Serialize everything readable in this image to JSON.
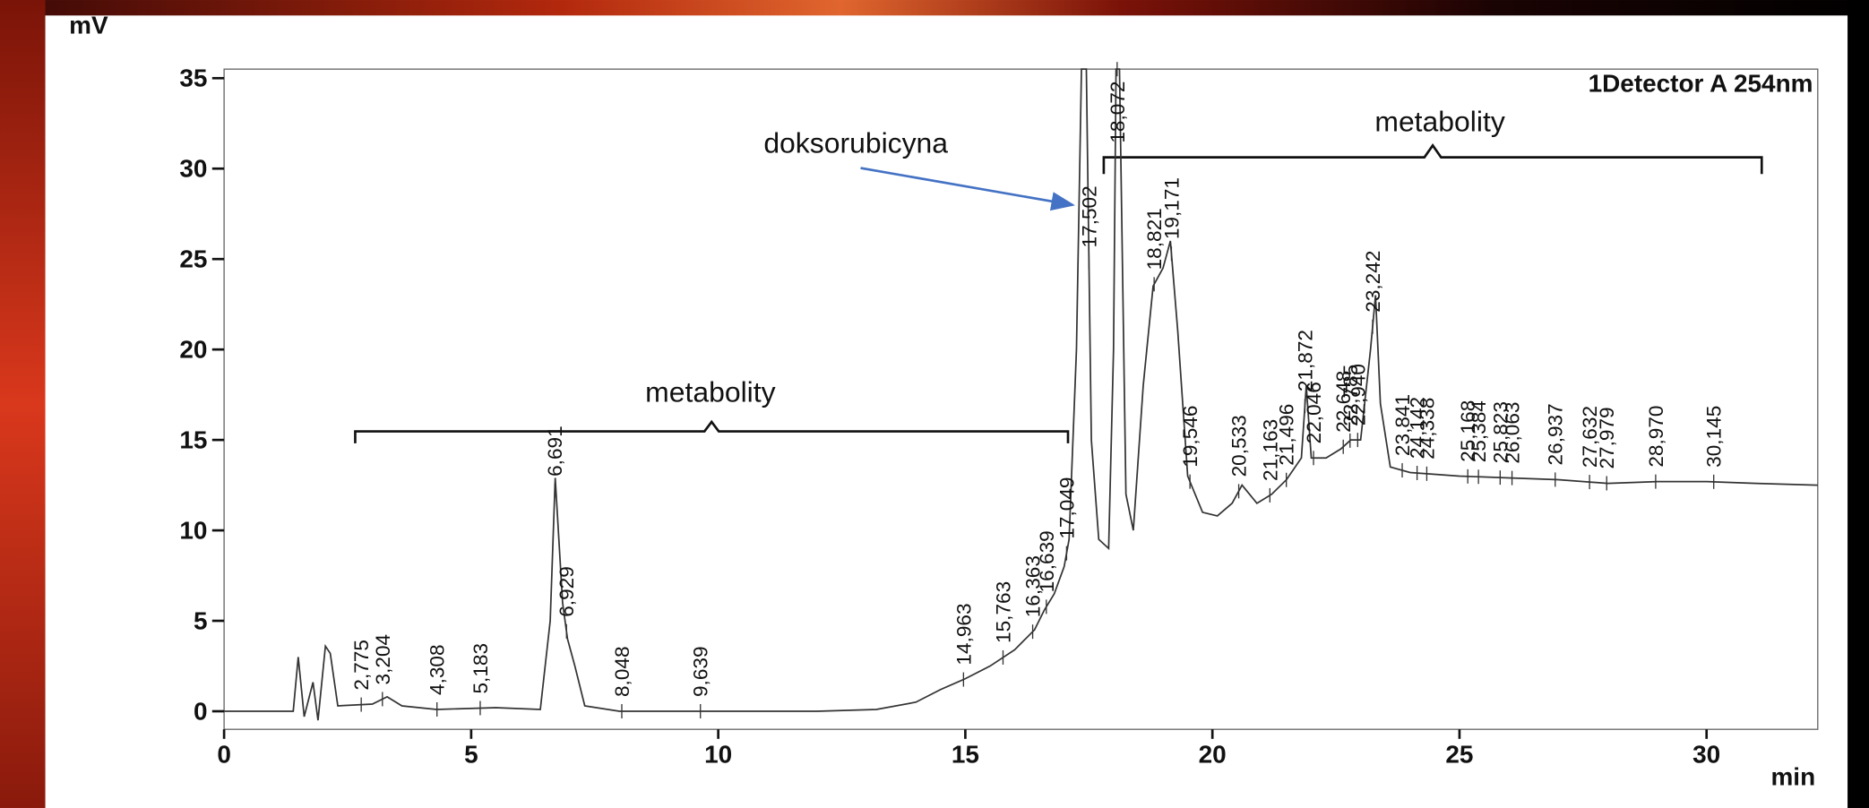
{
  "chart_data": {
    "type": "line",
    "xlabel": "min",
    "ylabel": "mV",
    "xlim": [
      0,
      32.25
    ],
    "ylim": [
      -1,
      35.5
    ],
    "xticks": [
      0,
      5,
      10,
      15,
      20,
      25,
      30
    ],
    "yticks": [
      0,
      5,
      10,
      15,
      20,
      25,
      30,
      35
    ],
    "series": [
      {
        "name": "1Detector A 254nm",
        "color": "#333333",
        "x": [
          0,
          1.4,
          1.5,
          1.62,
          1.8,
          1.9,
          2.05,
          2.15,
          2.3,
          3.0,
          3.3,
          3.6,
          4.3,
          5.5,
          6.4,
          6.6,
          6.7,
          6.85,
          6.95,
          7.1,
          7.3,
          8,
          12,
          13.2,
          14,
          14.5,
          15,
          15.5,
          16,
          16.4,
          16.6,
          16.8,
          17.0,
          17.1,
          17.25,
          17.35,
          17.45,
          17.55,
          17.7,
          17.9,
          18.0,
          18.05,
          18.12,
          18.25,
          18.4,
          18.6,
          18.8,
          19.0,
          19.15,
          19.3,
          19.5,
          19.8,
          20.1,
          20.4,
          20.6,
          20.9,
          21.2,
          21.5,
          21.8,
          21.9,
          22.0,
          22.3,
          22.6,
          22.8,
          23.0,
          23.2,
          23.3,
          23.4,
          23.6,
          24,
          25,
          26,
          27,
          28,
          29,
          30,
          31,
          32.25
        ],
        "values": [
          0,
          0,
          3.0,
          -0.3,
          1.6,
          -0.5,
          3.6,
          3.2,
          0.3,
          0.4,
          0.8,
          0.3,
          0.1,
          0.2,
          0.1,
          5,
          12.9,
          6,
          4,
          2.5,
          0.3,
          0,
          0,
          0.1,
          0.5,
          1.2,
          1.8,
          2.5,
          3.4,
          4.5,
          5.6,
          6.5,
          8,
          9.5,
          20,
          35.5,
          35.5,
          15,
          9.5,
          9.0,
          20,
          35.5,
          35.5,
          12,
          10,
          18,
          23.5,
          24.5,
          26,
          21,
          13,
          11,
          10.8,
          11.5,
          12.5,
          11.5,
          12,
          12.8,
          14,
          18,
          14,
          14,
          14.5,
          15,
          15,
          20,
          23,
          17,
          13.5,
          13.2,
          13,
          12.9,
          12.8,
          12.6,
          12.7,
          12.7,
          12.6,
          12.5
        ]
      }
    ],
    "peaks": [
      {
        "value": 2.775,
        "label": "2,775"
      },
      {
        "value": 3.204,
        "label": "3,204"
      },
      {
        "value": 4.308,
        "label": "4,308"
      },
      {
        "value": 5.183,
        "label": "5,183"
      },
      {
        "value": 6.691,
        "label": "6,691"
      },
      {
        "value": 6.929,
        "label": "6,929"
      },
      {
        "value": 8.048,
        "label": "8,048"
      },
      {
        "value": 9.639,
        "label": "9,639"
      },
      {
        "value": 14.963,
        "label": "14,963"
      },
      {
        "value": 15.763,
        "label": "15,763"
      },
      {
        "value": 16.363,
        "label": "16,363"
      },
      {
        "value": 16.639,
        "label": "16,639"
      },
      {
        "value": 17.049,
        "label": "17,049"
      },
      {
        "value": 17.502,
        "label": "17,502"
      },
      {
        "value": 18.072,
        "label": "18,072"
      },
      {
        "value": 18.821,
        "label": "18,821"
      },
      {
        "value": 19.171,
        "label": "19,171"
      },
      {
        "value": 19.546,
        "label": "19,546"
      },
      {
        "value": 20.533,
        "label": "20,533"
      },
      {
        "value": 21.163,
        "label": "21,163"
      },
      {
        "value": 21.496,
        "label": "21,496"
      },
      {
        "value": 21.872,
        "label": "21,872"
      },
      {
        "value": 22.046,
        "label": "22,046"
      },
      {
        "value": 22.648,
        "label": "22,648"
      },
      {
        "value": 22.785,
        "label": "22,785"
      },
      {
        "value": 22.94,
        "label": "22,940"
      },
      {
        "value": 23.242,
        "label": "23,242"
      },
      {
        "value": 23.841,
        "label": "23,841"
      },
      {
        "value": 24.142,
        "label": "24,142"
      },
      {
        "value": 24.338,
        "label": "24,338"
      },
      {
        "value": 25.168,
        "label": "25,168"
      },
      {
        "value": 25.384,
        "label": "25,384"
      },
      {
        "value": 25.823,
        "label": "25,823"
      },
      {
        "value": 26.063,
        "label": "26,063"
      },
      {
        "value": 26.937,
        "label": "26,937"
      },
      {
        "value": 27.632,
        "label": "27,632"
      },
      {
        "value": 27.979,
        "label": "27,979"
      },
      {
        "value": 28.97,
        "label": "28,970"
      },
      {
        "value": 30.145,
        "label": "30,145"
      }
    ],
    "annotations": [
      "doksorubicyna",
      "metabolity",
      "metabolity"
    ]
  }
}
